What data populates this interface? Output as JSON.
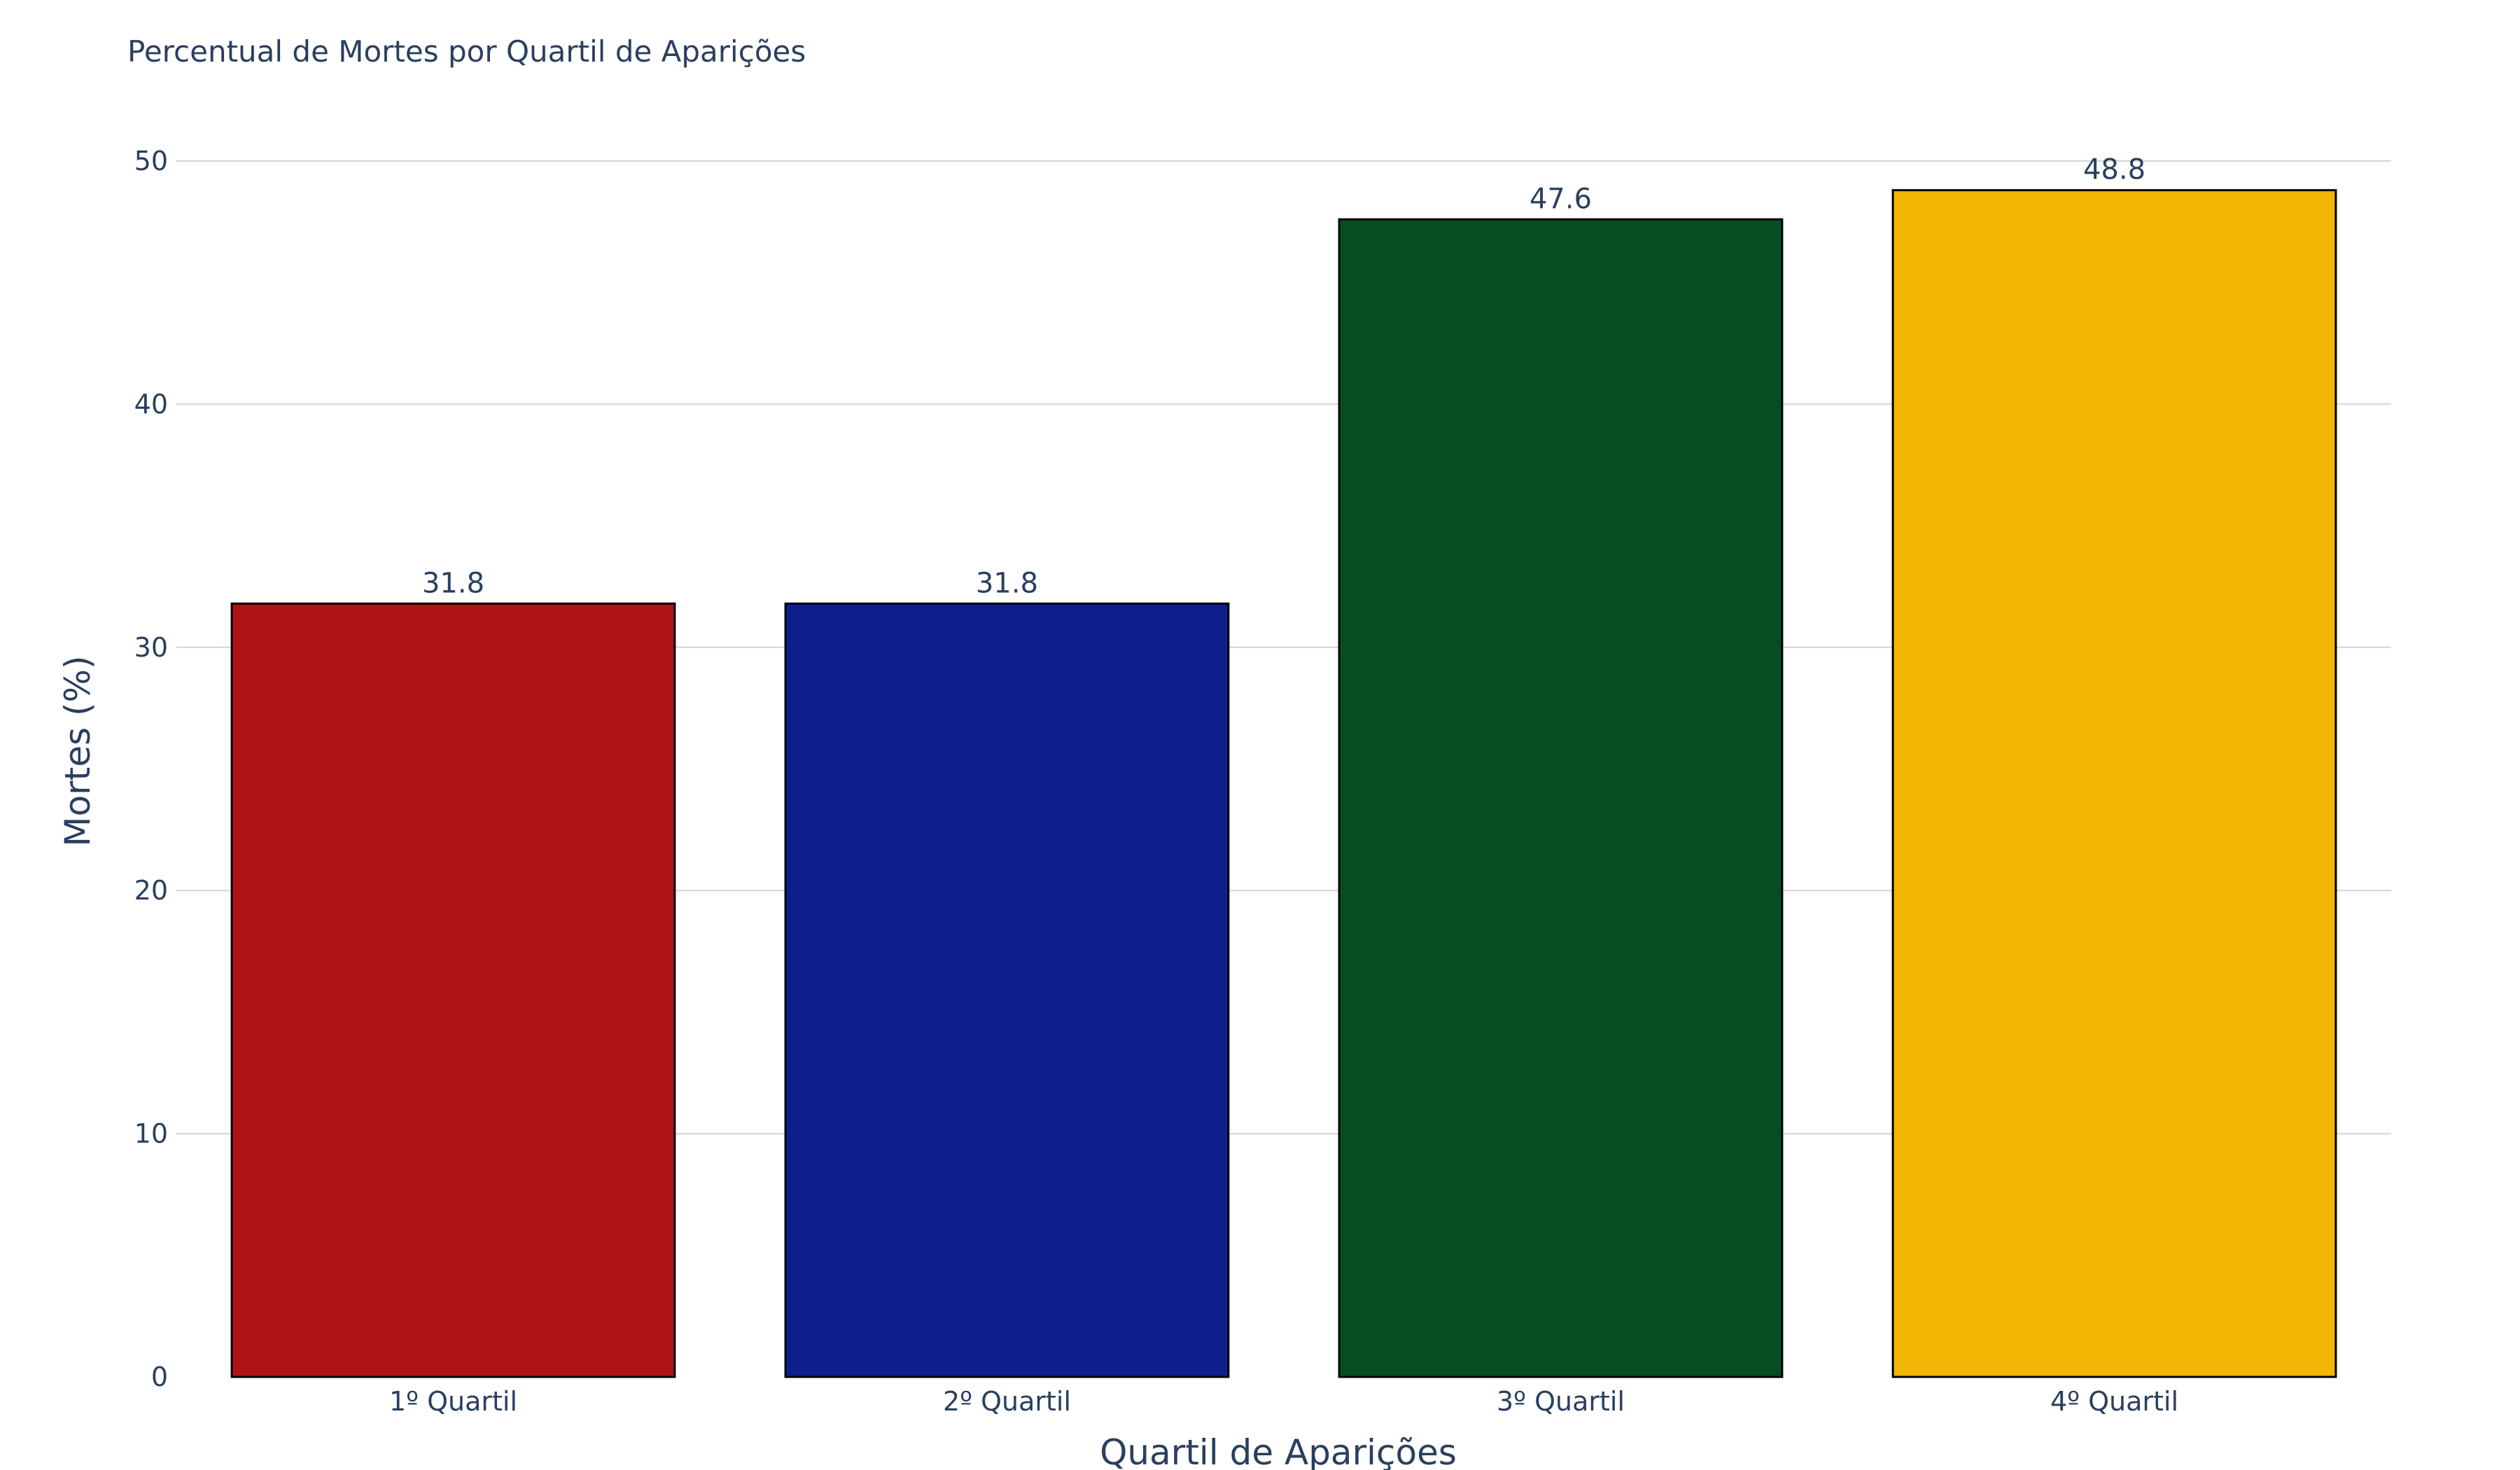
{
  "chart_data": {
    "type": "bar",
    "title": "Percentual de Mortes por Quartil de Aparições",
    "xlabel": "Quartil de Aparições",
    "ylabel": "Mortes (%)",
    "categories": [
      "1º Quartil",
      "2º Quartil",
      "3º Quartil",
      "4º Quartil"
    ],
    "values": [
      31.8,
      31.8,
      47.6,
      48.8
    ],
    "value_labels": [
      "31.8",
      "31.8",
      "47.6",
      "48.8"
    ],
    "colors": [
      "#b01313",
      "#0e1f8e",
      "#074d22",
      "#f2b705"
    ],
    "ylim": [
      0,
      50
    ],
    "yticks": [
      0,
      10,
      20,
      30,
      40,
      50
    ],
    "grid": true,
    "legend": "none"
  }
}
